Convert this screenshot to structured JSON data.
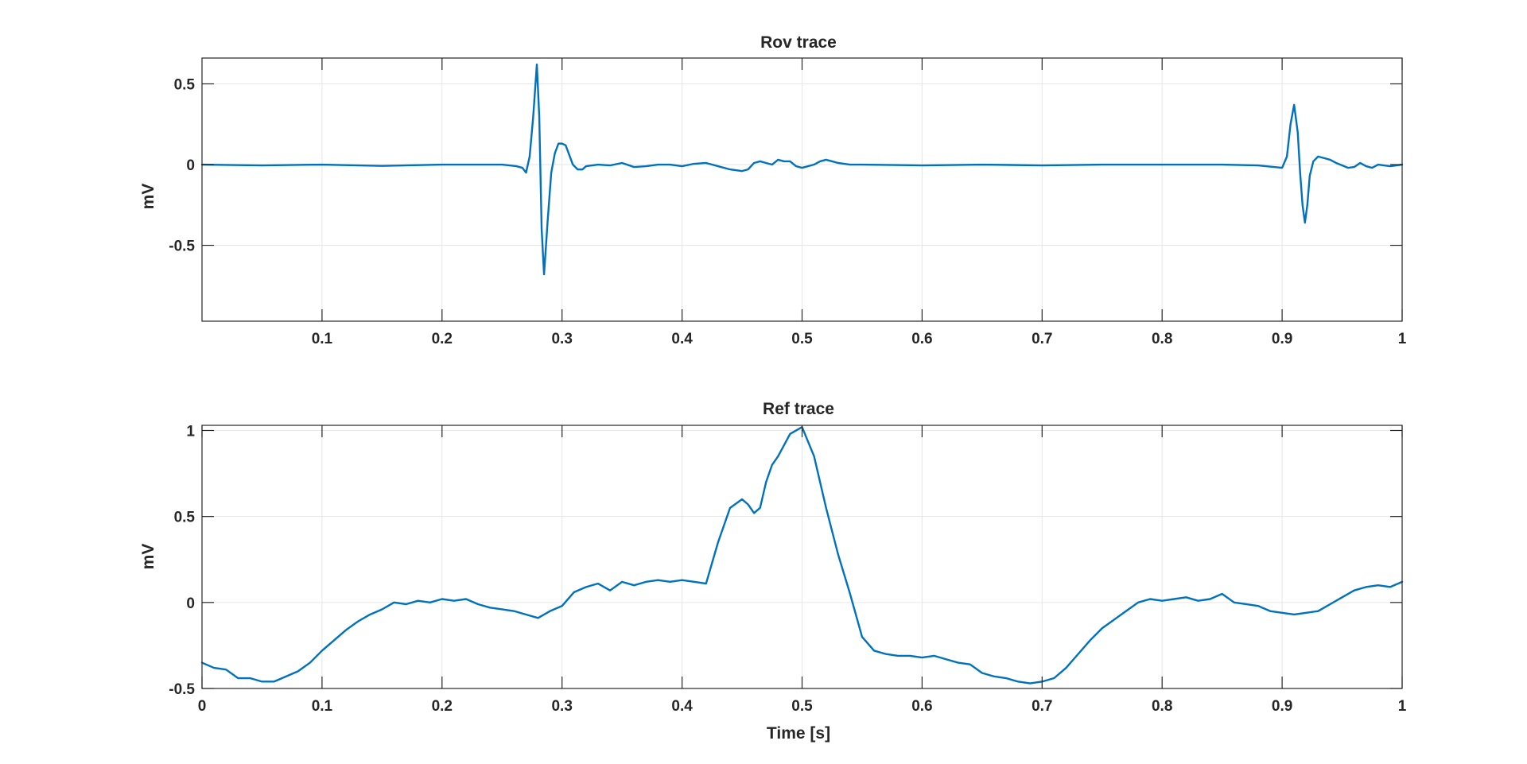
{
  "colors": {
    "background": "#ffffff",
    "axes_box": "#262626",
    "grid": "#e6e6e6",
    "trace": "#0072bd"
  },
  "chart_data": [
    {
      "type": "line",
      "title": "Rov trace",
      "xlabel": "",
      "ylabel": "mV",
      "xlim": [
        0,
        1
      ],
      "ylim": [
        -0.97,
        0.66
      ],
      "xticks": [
        0.1,
        0.2,
        0.3,
        0.4,
        0.5,
        0.6,
        0.7,
        0.8,
        0.9,
        1
      ],
      "xtick_labels": [
        "0.1",
        "0.2",
        "0.3",
        "0.4",
        "0.5",
        "0.6",
        "0.7",
        "0.8",
        "0.9",
        "1"
      ],
      "yticks": [
        -0.5,
        0,
        0.5
      ],
      "ytick_labels": [
        "-0.5",
        "0",
        "0.5"
      ],
      "grid": true,
      "series": [
        {
          "x": [
            0,
            0.05,
            0.1,
            0.15,
            0.2,
            0.25,
            0.262,
            0.267,
            0.27,
            0.273,
            0.276,
            0.279,
            0.281,
            0.283,
            0.285,
            0.288,
            0.291,
            0.294,
            0.297,
            0.3,
            0.303,
            0.306,
            0.309,
            0.313,
            0.317,
            0.32,
            0.33,
            0.34,
            0.35,
            0.36,
            0.37,
            0.38,
            0.39,
            0.4,
            0.41,
            0.42,
            0.43,
            0.44,
            0.45,
            0.455,
            0.46,
            0.465,
            0.47,
            0.475,
            0.48,
            0.485,
            0.49,
            0.495,
            0.5,
            0.505,
            0.51,
            0.515,
            0.52,
            0.525,
            0.53,
            0.54,
            0.55,
            0.6,
            0.65,
            0.7,
            0.75,
            0.8,
            0.85,
            0.88,
            0.9,
            0.904,
            0.907,
            0.91,
            0.913,
            0.915,
            0.917,
            0.919,
            0.921,
            0.923,
            0.926,
            0.93,
            0.935,
            0.94,
            0.945,
            0.95,
            0.955,
            0.96,
            0.965,
            0.97,
            0.975,
            0.98,
            0.99,
            1
          ],
          "y": [
            0,
            -0.005,
            0,
            -0.008,
            0,
            0,
            -0.01,
            -0.02,
            -0.05,
            0.05,
            0.3,
            0.62,
            0.3,
            -0.4,
            -0.68,
            -0.35,
            -0.05,
            0.07,
            0.13,
            0.13,
            0.12,
            0.06,
            0.0,
            -0.03,
            -0.03,
            -0.01,
            0,
            -0.005,
            0.01,
            -0.015,
            -0.01,
            0,
            0,
            -0.01,
            0.005,
            0.01,
            -0.01,
            -0.03,
            -0.04,
            -0.03,
            0.01,
            0.02,
            0.01,
            0.0,
            0.03,
            0.02,
            0.02,
            -0.01,
            -0.02,
            -0.01,
            0.0,
            0.02,
            0.03,
            0.02,
            0.01,
            0,
            0,
            -0.005,
            0,
            -0.005,
            0,
            0,
            0,
            -0.005,
            -0.02,
            0.05,
            0.25,
            0.37,
            0.2,
            -0.05,
            -0.25,
            -0.36,
            -0.25,
            -0.07,
            0.02,
            0.05,
            0.04,
            0.03,
            0.01,
            -0.005,
            -0.02,
            -0.015,
            0.01,
            -0.01,
            -0.02,
            0.0,
            -0.01,
            0
          ]
        }
      ]
    },
    {
      "type": "line",
      "title": "Ref trace",
      "xlabel": "Time [s]",
      "ylabel": "mV",
      "xlim": [
        0,
        1
      ],
      "ylim": [
        -0.5,
        1.03
      ],
      "xticks": [
        0,
        0.1,
        0.2,
        0.3,
        0.4,
        0.5,
        0.6,
        0.7,
        0.8,
        0.9,
        1
      ],
      "xtick_labels": [
        "0",
        "0.1",
        "0.2",
        "0.3",
        "0.4",
        "0.5",
        "0.6",
        "0.7",
        "0.8",
        "0.9",
        "1"
      ],
      "yticks": [
        -0.5,
        0,
        0.5,
        1
      ],
      "ytick_labels": [
        "-0.5",
        "0",
        "0.5",
        "1"
      ],
      "grid": true,
      "series": [
        {
          "x": [
            0,
            0.01,
            0.02,
            0.03,
            0.04,
            0.05,
            0.06,
            0.07,
            0.08,
            0.09,
            0.1,
            0.11,
            0.12,
            0.13,
            0.14,
            0.15,
            0.16,
            0.17,
            0.18,
            0.19,
            0.2,
            0.21,
            0.22,
            0.23,
            0.24,
            0.25,
            0.26,
            0.27,
            0.28,
            0.29,
            0.3,
            0.31,
            0.32,
            0.33,
            0.34,
            0.35,
            0.36,
            0.37,
            0.38,
            0.39,
            0.4,
            0.41,
            0.42,
            0.43,
            0.44,
            0.45,
            0.455,
            0.46,
            0.465,
            0.47,
            0.475,
            0.48,
            0.49,
            0.5,
            0.51,
            0.52,
            0.53,
            0.54,
            0.55,
            0.56,
            0.57,
            0.58,
            0.59,
            0.6,
            0.61,
            0.62,
            0.63,
            0.64,
            0.65,
            0.66,
            0.67,
            0.68,
            0.69,
            0.7,
            0.71,
            0.72,
            0.73,
            0.74,
            0.75,
            0.76,
            0.77,
            0.78,
            0.79,
            0.8,
            0.81,
            0.82,
            0.83,
            0.84,
            0.85,
            0.86,
            0.87,
            0.88,
            0.89,
            0.9,
            0.91,
            0.92,
            0.93,
            0.94,
            0.95,
            0.96,
            0.97,
            0.98,
            0.99,
            1
          ],
          "y": [
            -0.35,
            -0.38,
            -0.39,
            -0.44,
            -0.44,
            -0.46,
            -0.46,
            -0.43,
            -0.4,
            -0.35,
            -0.28,
            -0.22,
            -0.16,
            -0.11,
            -0.07,
            -0.04,
            0.0,
            -0.01,
            0.01,
            0.0,
            0.02,
            0.01,
            0.02,
            -0.01,
            -0.03,
            -0.04,
            -0.05,
            -0.07,
            -0.09,
            -0.05,
            -0.02,
            0.06,
            0.09,
            0.11,
            0.07,
            0.12,
            0.1,
            0.12,
            0.13,
            0.12,
            0.13,
            0.12,
            0.11,
            0.35,
            0.55,
            0.6,
            0.57,
            0.52,
            0.55,
            0.7,
            0.8,
            0.85,
            0.98,
            1.02,
            0.85,
            0.55,
            0.28,
            0.05,
            -0.2,
            -0.28,
            -0.3,
            -0.31,
            -0.31,
            -0.32,
            -0.31,
            -0.33,
            -0.35,
            -0.36,
            -0.41,
            -0.43,
            -0.44,
            -0.46,
            -0.47,
            -0.46,
            -0.44,
            -0.38,
            -0.3,
            -0.22,
            -0.15,
            -0.1,
            -0.05,
            0.0,
            0.02,
            0.01,
            0.02,
            0.03,
            0.01,
            0.02,
            0.05,
            0.0,
            -0.01,
            -0.02,
            -0.05,
            -0.06,
            -0.07,
            -0.06,
            -0.05,
            -0.01,
            0.03,
            0.07,
            0.09,
            0.1,
            0.09,
            0.12
          ]
        }
      ]
    }
  ]
}
